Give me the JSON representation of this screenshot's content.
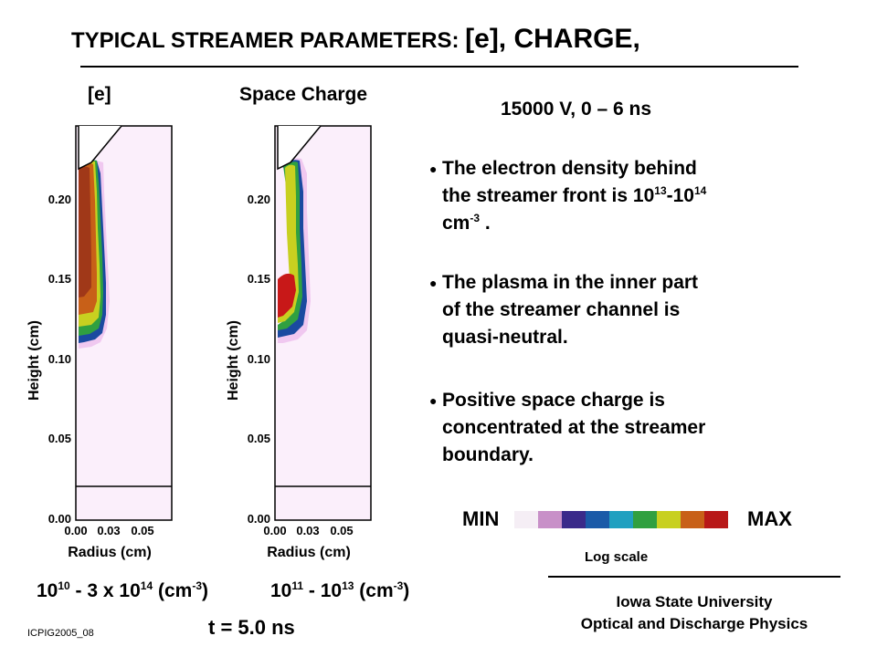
{
  "title": {
    "prefix": "TYPICAL STREAMER PARAMETERS:",
    "suffix": "[e], CHARGE,"
  },
  "panels": {
    "electron": {
      "label": "[e]"
    },
    "charge": {
      "label": "Space Charge"
    },
    "y_axis_label": "Height (cm)",
    "x_axis_label": "Radius (cm)",
    "y_ticks": [
      "0.00",
      "0.05",
      "0.10",
      "0.15",
      "0.20"
    ],
    "x_ticks": [
      "0.00",
      "0.03",
      "0.05"
    ]
  },
  "conditions": "15000 V,  0 – 6 ns",
  "bullets": [
    {
      "l1": "The electron density behind",
      "l2a": "the streamer front is 10",
      "sup1": "13",
      "l2b": "-10",
      "sup2": "14",
      "l3a": "cm",
      "sup3": "-3",
      "l3b": " ."
    },
    {
      "l1": "The plasma in the inner part",
      "l2": "of the streamer channel is",
      "l3": "quasi-neutral."
    },
    {
      "l1": "Positive space charge is",
      "l2": "concentrated at the streamer",
      "l3": "boundary."
    }
  ],
  "colorbar": {
    "min_label": "MIN",
    "max_label": "MAX",
    "scale_label": "Log scale",
    "colors": [
      "#f5eef5",
      "#c890c8",
      "#3a2a8a",
      "#1a5aa8",
      "#20a0c0",
      "#30a040",
      "#c8d020",
      "#c86018",
      "#b81818"
    ]
  },
  "ranges": {
    "electron": {
      "base": "10",
      "exp1": "10",
      "mid": " - 3 x 10",
      "exp2": "14",
      "unit_a": " (cm",
      "unit_exp": "-3",
      "unit_b": ")"
    },
    "charge": {
      "base": "10",
      "exp1": "11",
      "mid": " - 10",
      "exp2": "13",
      "unit_a": " (cm",
      "unit_exp": "-3",
      "unit_b": ")"
    }
  },
  "time": "t = 5.0 ns",
  "code": "ICPIG2005_08",
  "affiliation": {
    "line1": "Iowa State University",
    "line2": "Optical and Discharge Physics"
  }
}
